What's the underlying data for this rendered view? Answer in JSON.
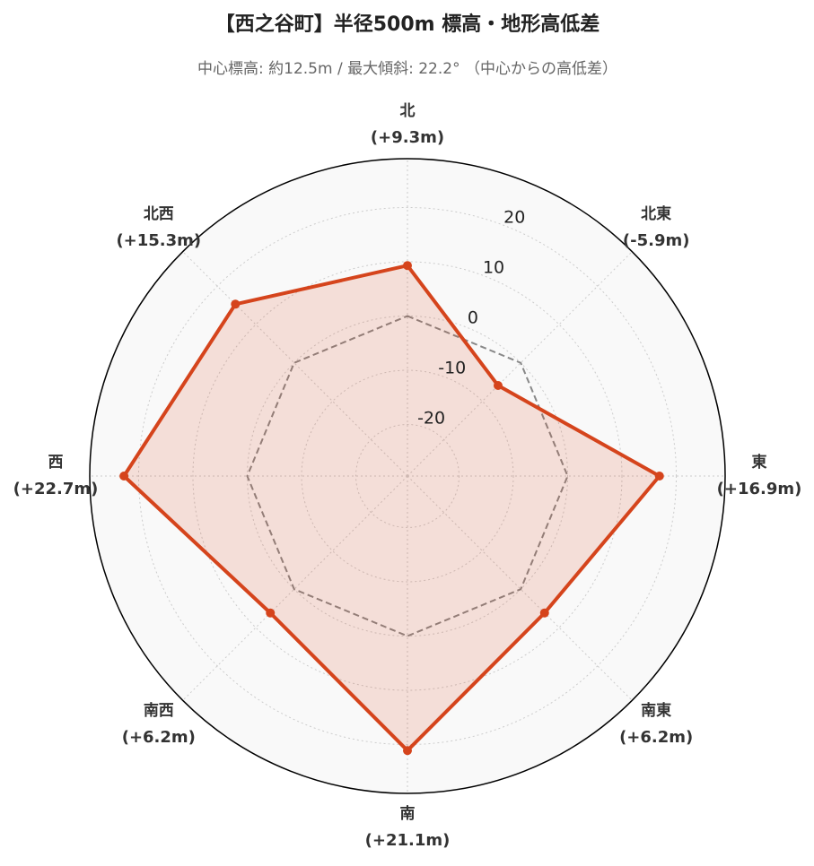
{
  "chart_data": {
    "type": "radar",
    "title": "【西之谷町】半径500m 標高・地形高低差",
    "subtitle": "中心標高: 約12.5m / 最大傾斜: 22.2° （中心からの高低差）",
    "categories": [
      "北",
      "北東",
      "東",
      "南東",
      "南",
      "南西",
      "西",
      "北西"
    ],
    "values": [
      9.3,
      -5.9,
      16.9,
      6.2,
      21.1,
      6.2,
      22.7,
      15.3
    ],
    "value_labels": [
      "(+9.3m)",
      "(-5.9m)",
      "(+16.9m)",
      "(+6.2m)",
      "(+21.1m)",
      "(+6.2m)",
      "(+22.7m)",
      "(+15.3m)"
    ],
    "color": "#d5441c",
    "reference_value": 0,
    "ylim": [
      -29.5,
      29
    ],
    "yticks": [
      -20,
      -10,
      0,
      10,
      20
    ],
    "grid": true
  }
}
